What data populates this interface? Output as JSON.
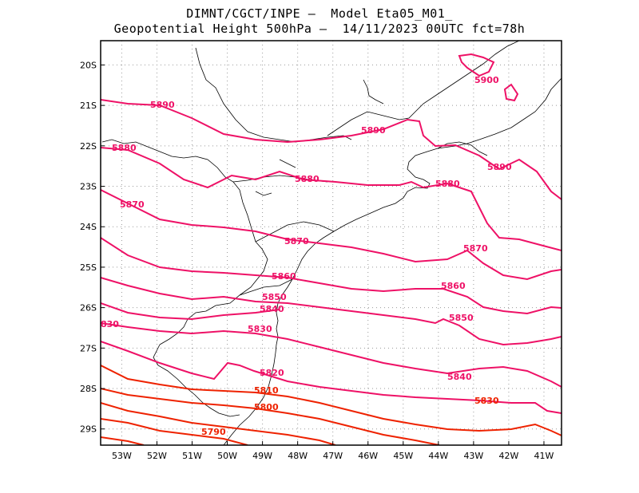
{
  "header": {
    "line1": "DIMNT/CGCT/INPE –  Model Eta05_M01_",
    "line2": "Geopotential Height 500hPa –  14/11/2023 00UTC fct=78h"
  },
  "axes": {
    "lon_labels": [
      "53W",
      "52W",
      "51W",
      "50W",
      "49W",
      "48W",
      "47W",
      "46W",
      "45W",
      "44W",
      "43W",
      "42W",
      "41W"
    ],
    "lat_labels": [
      "20S",
      "21S",
      "22S",
      "23S",
      "24S",
      "25S",
      "26S",
      "27S",
      "28S",
      "29S"
    ]
  },
  "colors": {
    "contour_high": "#ee1166",
    "contour_low": "#ee2200",
    "coast": "#000000",
    "grid": "#888888"
  },
  "chart_data": {
    "type": "contour",
    "lon_range": [
      -53.6,
      -40.5
    ],
    "lat_range": [
      -29.4,
      -19.4
    ],
    "units": "gpm",
    "grid": true,
    "contour_labels": [
      "5900",
      "5890",
      "5890",
      "5880",
      "5880",
      "5890",
      "5880",
      "5870",
      "5870",
      "5870",
      "5860",
      "5860",
      "5850",
      "5840",
      "5850",
      "830",
      "5830",
      "5820",
      "5840",
      "5810",
      "5830",
      "5800",
      "5790"
    ]
  }
}
